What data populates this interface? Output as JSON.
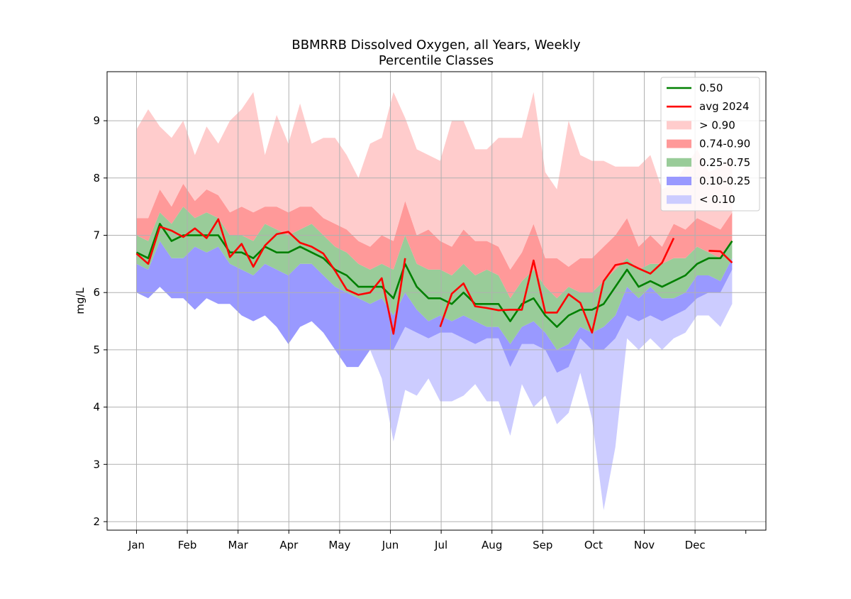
{
  "chart_data": {
    "type": "area",
    "title": "BBMRRB Dissolved Oxygen, all Years, Weekly",
    "subtitle": "Percentile Classes",
    "xlabel": "",
    "ylabel": "mg/L",
    "ylim": [
      1.85,
      9.85
    ],
    "xlim": [
      -0.57,
      12.4
    ],
    "grid": true,
    "legend_position": "top-right",
    "x_ticks": [
      {
        "label": "Jan",
        "value": 0
      },
      {
        "label": "Feb",
        "value": 1
      },
      {
        "label": "Mar",
        "value": 2
      },
      {
        "label": "Apr",
        "value": 3
      },
      {
        "label": "May",
        "value": 4
      },
      {
        "label": "Jun",
        "value": 5
      },
      {
        "label": "Jul",
        "value": 6
      },
      {
        "label": "Aug",
        "value": 7
      },
      {
        "label": "Sep",
        "value": 8
      },
      {
        "label": "Oct",
        "value": 9
      },
      {
        "label": "Nov",
        "value": 10
      },
      {
        "label": "Dec",
        "value": 11
      },
      {
        "label": "",
        "value": 12
      }
    ],
    "y_ticks": [
      2,
      3,
      4,
      5,
      6,
      7,
      8,
      9
    ],
    "x_weeks": [
      0.0,
      0.23,
      0.46,
      0.69,
      0.92,
      1.15,
      1.38,
      1.61,
      1.84,
      2.07,
      2.3,
      2.53,
      2.76,
      2.99,
      3.22,
      3.45,
      3.68,
      3.91,
      4.14,
      4.37,
      4.6,
      4.83,
      5.06,
      5.29,
      5.52,
      5.75,
      5.98,
      6.21,
      6.44,
      6.67,
      6.9,
      7.13,
      7.36,
      7.59,
      7.82,
      8.05,
      8.28,
      8.51,
      8.74,
      8.97,
      9.2,
      9.43,
      9.66,
      9.89,
      10.12,
      10.35,
      10.58,
      10.81,
      11.04,
      11.27,
      11.5,
      11.73
    ],
    "bands": [
      {
        "name": "> 0.90",
        "color": "#ffcccc",
        "lower": [
          7.3,
          7.3,
          7.8,
          7.5,
          7.9,
          7.6,
          7.8,
          7.7,
          7.4,
          7.5,
          7.4,
          7.5,
          7.5,
          7.4,
          7.5,
          7.5,
          7.3,
          7.2,
          7.1,
          6.9,
          6.8,
          7.0,
          6.9,
          7.6,
          7.0,
          7.1,
          6.9,
          6.8,
          7.1,
          6.9,
          6.9,
          6.8,
          6.4,
          6.7,
          7.2,
          6.6,
          6.6,
          6.45,
          6.6,
          6.6,
          6.8,
          7.0,
          7.3,
          6.8,
          7.0,
          6.8,
          7.2,
          7.1,
          7.3,
          7.2,
          7.1,
          7.4
        ],
        "upper": [
          8.85,
          9.2,
          8.9,
          8.7,
          9.0,
          8.4,
          8.9,
          8.6,
          9.0,
          9.2,
          9.5,
          8.4,
          9.1,
          8.6,
          9.3,
          8.6,
          8.7,
          8.7,
          8.4,
          8.0,
          8.6,
          8.7,
          9.5,
          9.05,
          8.5,
          8.4,
          8.3,
          9.0,
          9.0,
          8.5,
          8.5,
          8.7,
          8.7,
          8.7,
          9.5,
          8.1,
          7.8,
          9.0,
          8.4,
          8.3,
          8.3,
          8.2,
          8.2,
          8.2,
          8.4,
          7.8,
          7.9,
          8.2,
          8.5,
          8.1,
          8.2,
          8.4
        ]
      },
      {
        "name": "0.74-0.90",
        "color": "#ff9999",
        "lower": [
          7.0,
          6.9,
          7.4,
          7.2,
          7.5,
          7.3,
          7.4,
          7.3,
          7.0,
          7.0,
          6.9,
          7.2,
          7.1,
          7.0,
          7.1,
          7.2,
          7.0,
          6.8,
          6.7,
          6.5,
          6.4,
          6.5,
          6.4,
          7.0,
          6.5,
          6.4,
          6.4,
          6.3,
          6.5,
          6.3,
          6.4,
          6.3,
          5.9,
          6.2,
          6.4,
          6.1,
          5.9,
          6.1,
          6.0,
          6.0,
          6.2,
          6.4,
          6.6,
          6.4,
          6.5,
          6.5,
          6.6,
          6.6,
          6.8,
          6.7,
          6.6,
          6.9
        ],
        "upper": [
          7.3,
          7.3,
          7.8,
          7.5,
          7.9,
          7.6,
          7.8,
          7.7,
          7.4,
          7.5,
          7.4,
          7.5,
          7.5,
          7.4,
          7.5,
          7.5,
          7.3,
          7.2,
          7.1,
          6.9,
          6.8,
          7.0,
          6.9,
          7.6,
          7.0,
          7.1,
          6.9,
          6.8,
          7.1,
          6.9,
          6.9,
          6.8,
          6.4,
          6.7,
          7.2,
          6.6,
          6.6,
          6.45,
          6.6,
          6.6,
          6.8,
          7.0,
          7.3,
          6.8,
          7.0,
          6.8,
          7.2,
          7.1,
          7.3,
          7.2,
          7.1,
          7.4
        ]
      },
      {
        "name": "0.25-0.75",
        "color": "#99cc99",
        "lower": [
          6.5,
          6.4,
          6.9,
          6.6,
          6.6,
          6.8,
          6.7,
          6.8,
          6.5,
          6.4,
          6.3,
          6.5,
          6.4,
          6.3,
          6.5,
          6.5,
          6.3,
          6.1,
          6.0,
          5.9,
          5.8,
          5.9,
          5.6,
          6.0,
          5.7,
          5.5,
          5.6,
          5.5,
          5.6,
          5.5,
          5.4,
          5.4,
          5.1,
          5.4,
          5.5,
          5.3,
          5.0,
          5.1,
          5.4,
          5.3,
          5.4,
          5.6,
          6.1,
          5.9,
          6.1,
          5.9,
          5.9,
          6.0,
          6.3,
          6.3,
          6.2,
          6.6
        ],
        "upper": [
          7.0,
          6.9,
          7.4,
          7.2,
          7.5,
          7.3,
          7.4,
          7.3,
          7.0,
          7.0,
          6.9,
          7.2,
          7.1,
          7.0,
          7.1,
          7.2,
          7.0,
          6.8,
          6.7,
          6.5,
          6.4,
          6.5,
          6.4,
          7.0,
          6.5,
          6.4,
          6.4,
          6.3,
          6.5,
          6.3,
          6.4,
          6.3,
          5.9,
          6.2,
          6.4,
          6.1,
          5.9,
          6.1,
          6.0,
          6.0,
          6.2,
          6.4,
          6.6,
          6.4,
          6.5,
          6.5,
          6.6,
          6.6,
          6.8,
          6.7,
          6.6,
          6.9
        ]
      },
      {
        "name": "0.10-0.25",
        "color": "#9999ff",
        "lower": [
          6.0,
          5.9,
          6.1,
          5.9,
          5.9,
          5.7,
          5.9,
          5.8,
          5.8,
          5.6,
          5.5,
          5.6,
          5.4,
          5.1,
          5.4,
          5.5,
          5.3,
          5.0,
          4.7,
          4.7,
          5.0,
          5.0,
          5.0,
          5.4,
          5.3,
          5.2,
          5.3,
          5.3,
          5.2,
          5.1,
          5.2,
          5.2,
          4.7,
          5.1,
          5.1,
          5.0,
          4.6,
          4.7,
          5.2,
          5.0,
          5.0,
          5.2,
          5.6,
          5.5,
          5.6,
          5.5,
          5.6,
          5.7,
          5.9,
          6.0,
          6.0,
          6.4
        ],
        "upper": [
          6.5,
          6.4,
          6.9,
          6.6,
          6.6,
          6.8,
          6.7,
          6.8,
          6.5,
          6.4,
          6.3,
          6.5,
          6.4,
          6.3,
          6.5,
          6.5,
          6.3,
          6.1,
          6.0,
          5.9,
          5.8,
          5.9,
          5.6,
          6.0,
          5.7,
          5.5,
          5.6,
          5.5,
          5.6,
          5.5,
          5.4,
          5.4,
          5.1,
          5.4,
          5.5,
          5.3,
          5.0,
          5.1,
          5.4,
          5.3,
          5.4,
          5.6,
          6.1,
          5.9,
          6.1,
          5.9,
          5.9,
          6.0,
          6.3,
          6.3,
          6.2,
          6.6
        ]
      },
      {
        "name": "< 0.10",
        "color": "#ccccff",
        "lower": [
          6.0,
          5.9,
          6.1,
          5.9,
          5.9,
          5.7,
          5.9,
          5.8,
          5.8,
          5.6,
          5.5,
          5.6,
          5.4,
          5.1,
          5.4,
          5.5,
          5.3,
          5.0,
          4.7,
          4.7,
          5.0,
          4.5,
          3.4,
          4.3,
          4.2,
          4.5,
          4.1,
          4.1,
          4.2,
          4.4,
          4.1,
          4.1,
          3.5,
          4.4,
          4.0,
          4.2,
          3.7,
          3.9,
          4.6,
          3.8,
          2.2,
          3.3,
          5.2,
          5.0,
          5.2,
          5.0,
          5.2,
          5.3,
          5.6,
          5.6,
          5.4,
          5.8
        ],
        "upper": [
          6.0,
          5.9,
          6.1,
          5.9,
          5.9,
          5.7,
          5.9,
          5.8,
          5.8,
          5.6,
          5.5,
          5.6,
          5.4,
          5.1,
          5.4,
          5.5,
          5.3,
          5.0,
          4.7,
          4.7,
          5.0,
          5.0,
          5.0,
          5.4,
          5.3,
          5.2,
          5.3,
          5.3,
          5.2,
          5.1,
          5.2,
          5.2,
          4.7,
          5.1,
          5.1,
          5.0,
          4.6,
          4.7,
          5.2,
          5.0,
          5.0,
          5.2,
          5.6,
          5.5,
          5.6,
          5.5,
          5.6,
          5.7,
          5.9,
          6.0,
          6.0,
          6.4
        ]
      }
    ],
    "series": [
      {
        "name": "0.50",
        "color": "#008000",
        "values": [
          6.7,
          6.6,
          7.2,
          6.9,
          7.0,
          7.0,
          7.0,
          7.0,
          6.7,
          6.7,
          6.6,
          6.8,
          6.7,
          6.7,
          6.8,
          6.7,
          6.6,
          6.4,
          6.3,
          6.1,
          6.1,
          6.1,
          5.9,
          6.5,
          6.1,
          5.9,
          5.9,
          5.8,
          6.0,
          5.8,
          5.8,
          5.8,
          5.5,
          5.8,
          5.9,
          5.6,
          5.4,
          5.6,
          5.7,
          5.7,
          5.8,
          6.1,
          6.4,
          6.1,
          6.2,
          6.1,
          6.2,
          6.3,
          6.5,
          6.6,
          6.6,
          6.9
        ]
      },
      {
        "name": "avg 2024",
        "color": "#ff0000",
        "values": [
          6.68,
          6.5,
          7.15,
          7.08,
          6.97,
          7.12,
          6.95,
          7.28,
          6.62,
          6.85,
          6.45,
          6.82,
          7.02,
          7.06,
          6.87,
          6.8,
          6.68,
          6.38,
          6.05,
          5.96,
          6.0,
          6.25,
          5.28,
          6.6,
          null,
          null,
          5.4,
          5.98,
          6.16,
          5.76,
          5.73,
          5.69,
          5.7,
          5.7,
          6.56,
          5.65,
          5.65,
          5.97,
          5.82,
          5.3,
          6.2,
          6.48,
          6.52,
          6.42,
          6.33,
          6.52,
          6.95,
          null,
          null,
          6.73,
          6.72,
          6.52
        ]
      }
    ]
  }
}
